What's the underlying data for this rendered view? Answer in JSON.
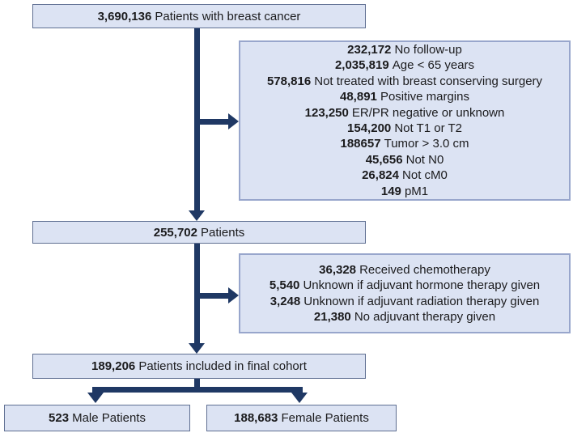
{
  "colors": {
    "box_fill": "#dce3f3",
    "box_border": "#5f6f92",
    "exclusion_border": "#98a6cc",
    "arrow": "#1f3864",
    "text": "#1b1b1d",
    "background": "#ffffff"
  },
  "nodes": {
    "total": {
      "value": "3,690,136",
      "label": "Patients with breast cancer"
    },
    "mid": {
      "value": "255,702",
      "label": "Patients"
    },
    "final": {
      "value": "189,206",
      "label": "Patients included in final cohort"
    },
    "male": {
      "value": "523",
      "label": "Male Patients"
    },
    "female": {
      "value": "188,683",
      "label": "Female Patients"
    }
  },
  "exclusions_stage1": {
    "items": [
      {
        "value": "232,172",
        "label": "No follow-up"
      },
      {
        "value": "2,035,819",
        "label": "Age < 65 years"
      },
      {
        "value": "578,816",
        "label": "Not treated with breast conserving surgery"
      },
      {
        "value": "48,891",
        "label": "Positive margins"
      },
      {
        "value": "123,250",
        "label": "ER/PR negative or unknown"
      },
      {
        "value": "154,200",
        "label": "Not T1 or T2"
      },
      {
        "value": "188657",
        "label": "Tumor > 3.0 cm"
      },
      {
        "value": "45,656",
        "label": "Not N0"
      },
      {
        "value": "26,824",
        "label": "Not cM0"
      },
      {
        "value": "149",
        "label": "pM1"
      }
    ]
  },
  "exclusions_stage2": {
    "items": [
      {
        "value": "36,328",
        "label": "Received chemotherapy"
      },
      {
        "value": "5,540",
        "label": "Unknown if adjuvant hormone therapy given"
      },
      {
        "value": "3,248",
        "label": "Unknown if adjuvant radiation therapy given"
      },
      {
        "value": "21,380",
        "label": "No adjuvant therapy given"
      }
    ]
  }
}
